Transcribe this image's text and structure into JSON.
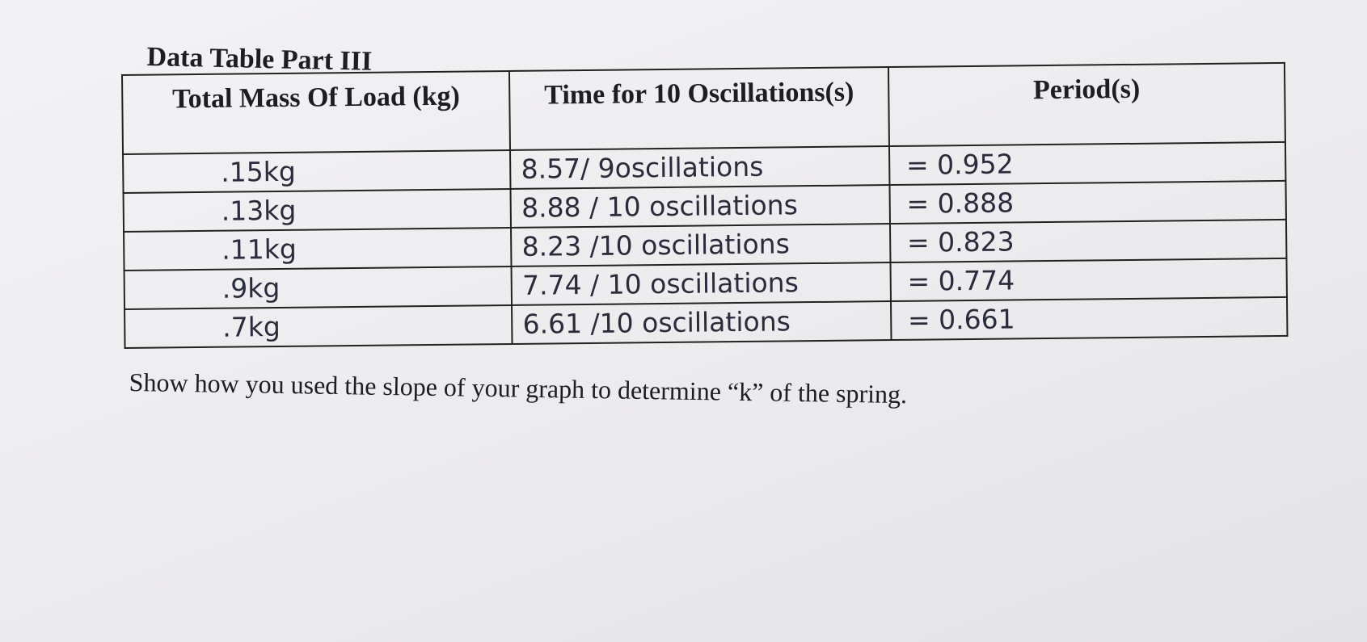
{
  "title": "Data Table Part III",
  "table": {
    "header": [
      "Total Mass Of Load (kg)",
      "Time for 10 Oscillations(s)",
      "Period(s)"
    ],
    "rows": [
      [
        ".15kg",
        "8.57/ 9oscillations",
        "= 0.952"
      ],
      [
        ".13kg",
        "8.88 / 10 oscillations",
        "= 0.888"
      ],
      [
        ".11kg",
        "8.23 /10 oscillations",
        "= 0.823"
      ],
      [
        ".9kg",
        "7.74 / 10 oscillations",
        "= 0.774"
      ],
      [
        ".7kg",
        "6.61 /10 oscillations",
        "= 0.661"
      ]
    ]
  },
  "instruction": "Show how you used the slope of your graph to determine “k” of the spring."
}
